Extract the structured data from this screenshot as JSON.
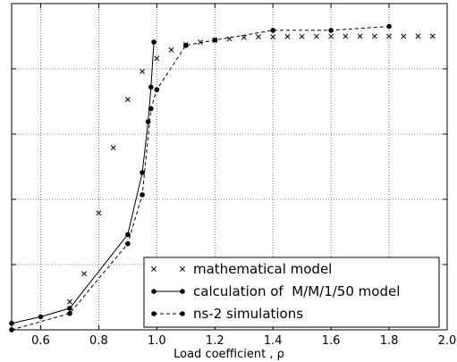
{
  "chart_data": {
    "type": "line",
    "xlabel": "Load coefficient , ρ",
    "xlim": [
      0.5,
      2.0
    ],
    "ylim": [
      0,
      50
    ],
    "xticks": [
      "0.6",
      "0.8",
      "1.0",
      "1.2",
      "1.4",
      "1.6",
      "1.8",
      "2.0"
    ],
    "xtick_values": [
      0.6,
      0.8,
      1.0,
      1.2,
      1.4,
      1.6,
      1.8,
      2.0
    ],
    "ygrid_values": [
      10,
      20,
      30,
      40
    ],
    "grid": true,
    "legend_position": "bottom-right",
    "series": [
      {
        "name": "mathematical model",
        "style": "markers-x",
        "color": "#000000",
        "x": [
          0.7,
          0.75,
          0.8,
          0.85,
          0.9,
          0.95,
          1.0,
          1.05,
          1.1,
          1.15,
          1.2,
          1.25,
          1.3,
          1.35,
          1.4,
          1.45,
          1.5,
          1.55,
          1.6,
          1.65,
          1.7,
          1.75,
          1.8,
          1.85,
          1.9,
          1.95
        ],
        "y": [
          4.3,
          8.6,
          17.9,
          27.9,
          35.3,
          39.6,
          41.6,
          42.9,
          43.7,
          44.1,
          44.4,
          44.6,
          44.8,
          44.9,
          44.9,
          44.95,
          44.96,
          44.97,
          44.98,
          44.98,
          44.99,
          44.99,
          44.99,
          44.99,
          45.0,
          45.0
        ]
      },
      {
        "name": "calculation of  M/M/1/50 model",
        "style": "solid-dot",
        "color": "#000000",
        "x": [
          0.5,
          0.6,
          0.7,
          0.9,
          0.95,
          0.97,
          0.98,
          0.99
        ],
        "y": [
          1.0,
          2.0,
          3.3,
          14.6,
          24.1,
          31.9,
          37.2,
          44.1
        ]
      },
      {
        "name": "ns-2 simulations",
        "style": "dashed-dot",
        "color": "#000000",
        "x": [
          0.5,
          0.7,
          0.9,
          0.95,
          0.98,
          1.0,
          1.1,
          1.2,
          1.4,
          1.6,
          1.8
        ],
        "y": [
          0.0,
          2.5,
          13.2,
          20.7,
          33.9,
          36.8,
          43.6,
          44.4,
          45.9,
          45.9,
          46.5
        ]
      }
    ]
  }
}
